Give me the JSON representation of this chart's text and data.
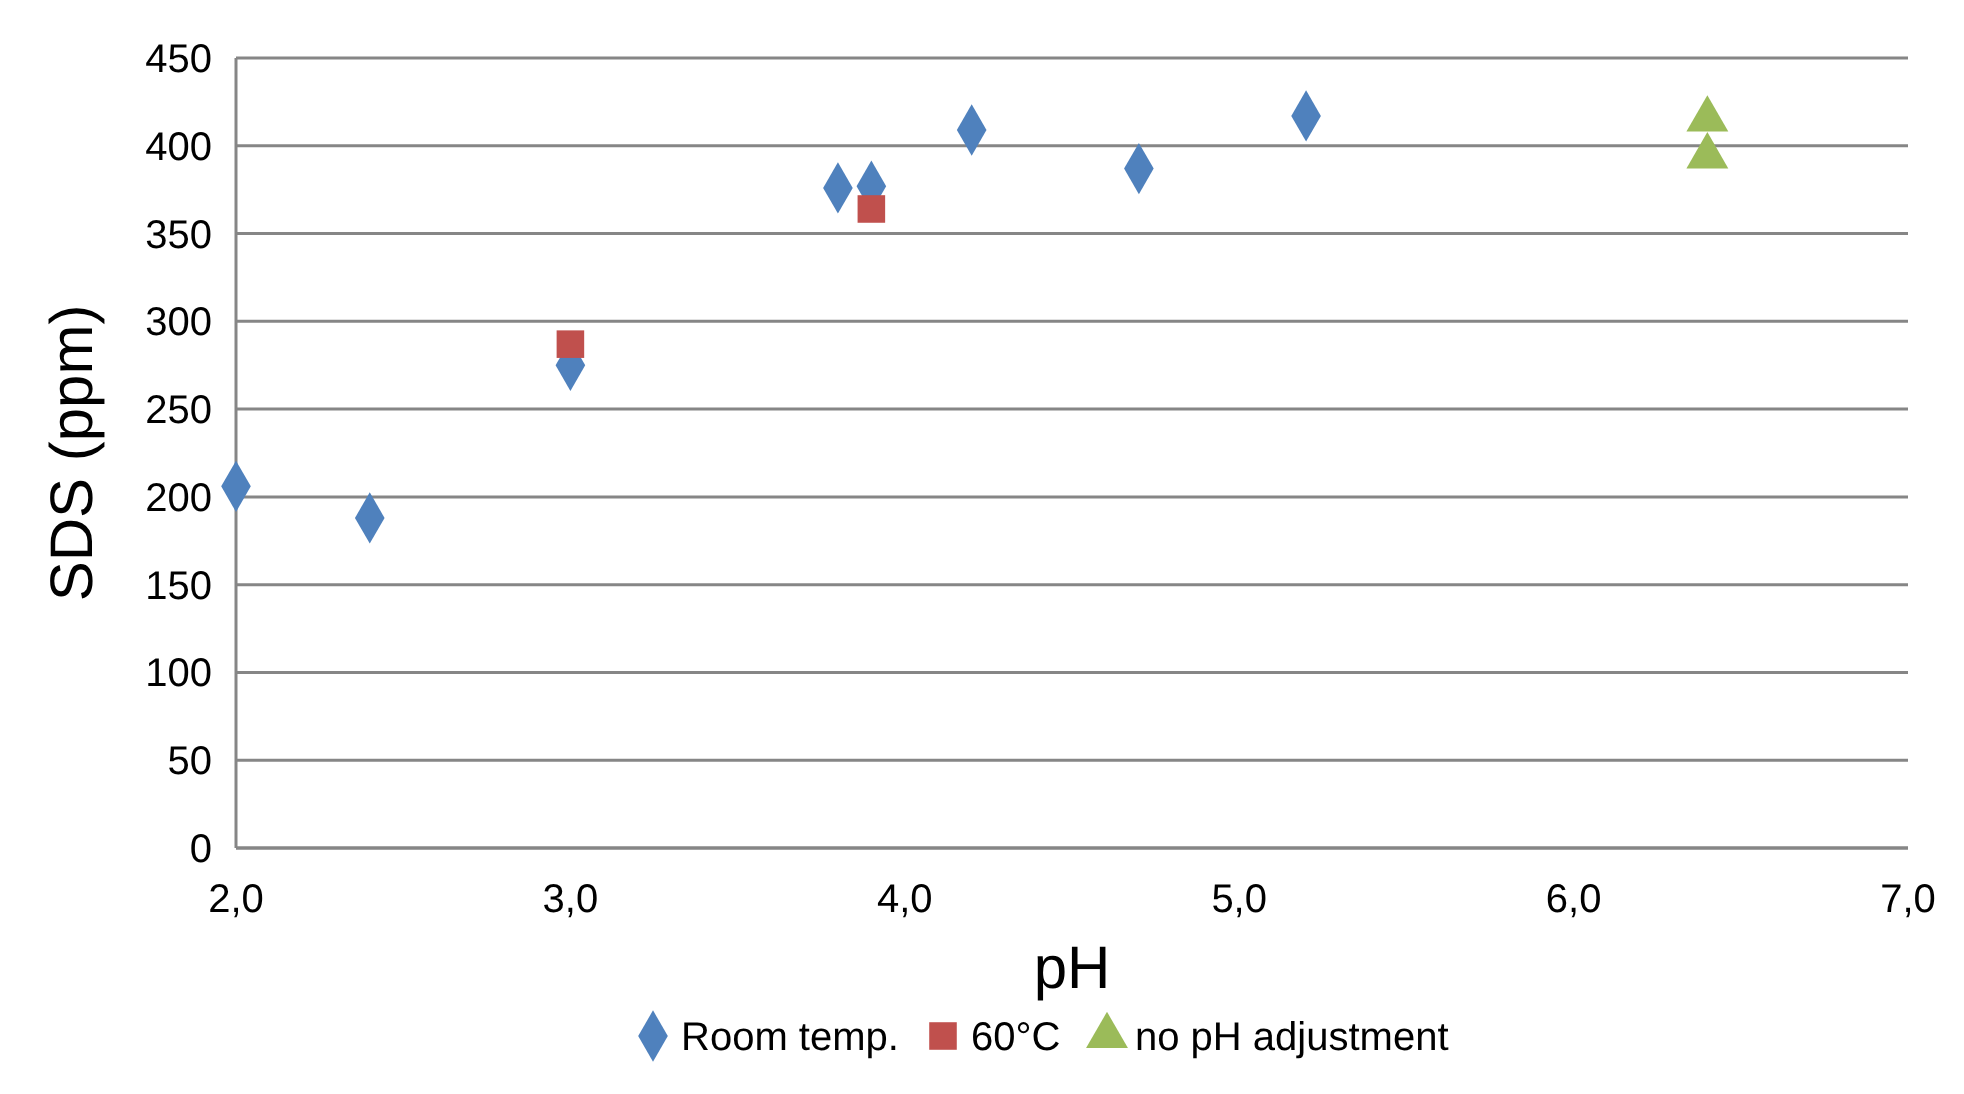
{
  "chart_data": {
    "type": "scatter",
    "xlabel": "pH",
    "ylabel": "SDS (ppm)",
    "xlim": [
      2,
      7
    ],
    "xticks": [
      {
        "value": 2,
        "label": "2,0"
      },
      {
        "value": 3,
        "label": "3,0"
      },
      {
        "value": 4,
        "label": "4,0"
      },
      {
        "value": 5,
        "label": "5,0"
      },
      {
        "value": 6,
        "label": "6,0"
      },
      {
        "value": 7,
        "label": "7,0"
      }
    ],
    "ylim": [
      0,
      450
    ],
    "yticks": [
      0,
      50,
      100,
      150,
      200,
      250,
      300,
      350,
      400,
      450
    ],
    "grid": "y",
    "legend": "bottom",
    "series": [
      {
        "name": "Room temp.",
        "color": "#4f81bd",
        "marker": "diamond",
        "x": [
          2.0,
          2.4,
          3.0,
          3.8,
          3.9,
          4.2,
          4.7,
          5.2
        ],
        "values": [
          206,
          188,
          275,
          376,
          377,
          409,
          387,
          417
        ]
      },
      {
        "name": "60°C",
        "color": "#c0504d",
        "marker": "square",
        "x": [
          3.0,
          3.9
        ],
        "values": [
          287,
          364
        ]
      },
      {
        "name": "no pH adjustment",
        "color": "#9bbb59",
        "marker": "triangle",
        "x": [
          6.4,
          6.4
        ],
        "values": [
          415,
          394
        ]
      }
    ]
  }
}
